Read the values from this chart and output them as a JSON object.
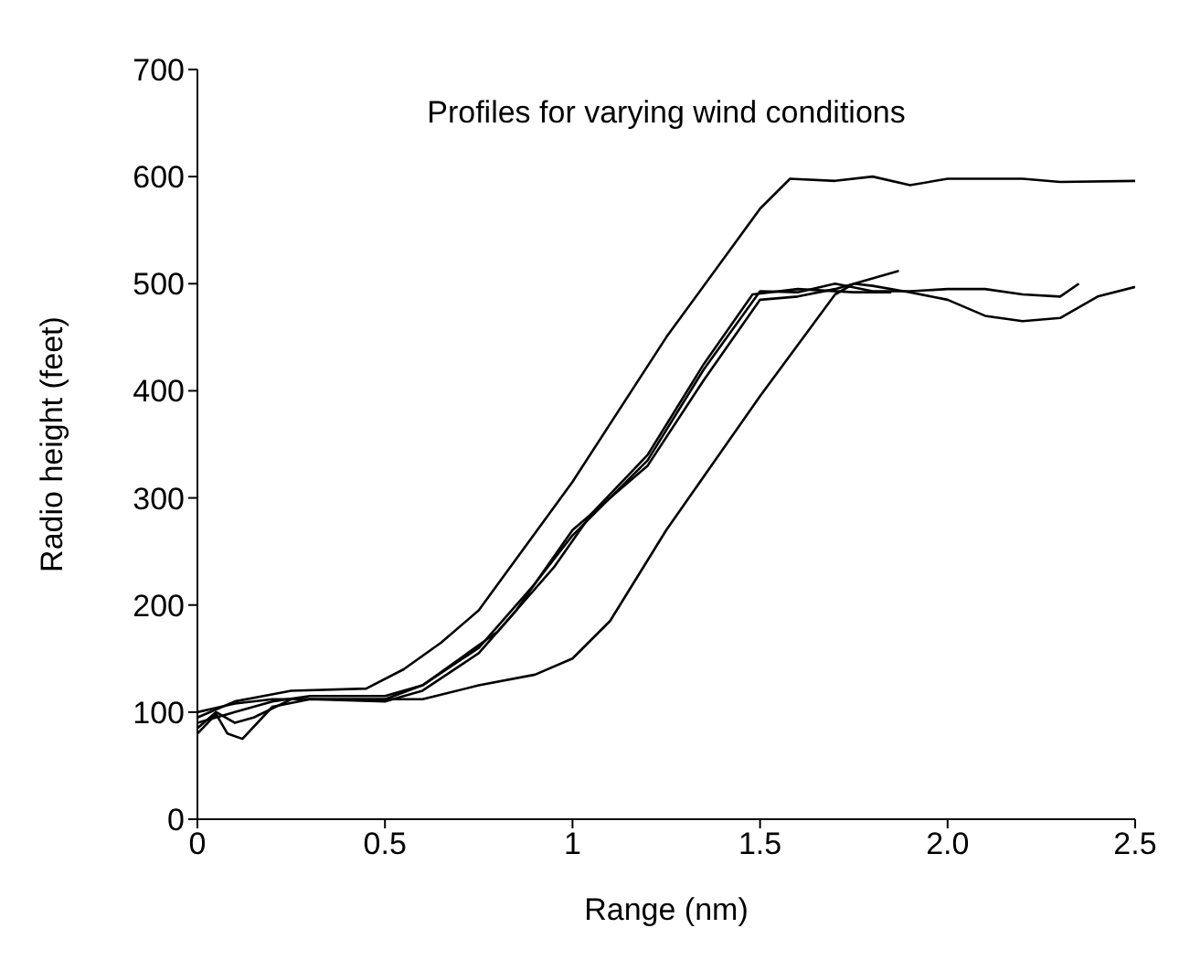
{
  "chart_data": {
    "type": "line",
    "title": "Profiles for varying wind conditions",
    "xlabel": "Range (nm)",
    "ylabel": "Radio height (feet)",
    "xlim": [
      0,
      2.5
    ],
    "ylim": [
      0,
      700
    ],
    "xticks": [
      0,
      0.5,
      1,
      1.5,
      {
        "value": 2,
        "label": "2.0"
      },
      2.5
    ],
    "yticks": [
      0,
      100,
      200,
      300,
      400,
      500,
      600,
      700
    ],
    "series": [
      {
        "color": "#000000",
        "x": [
          0,
          0.1,
          0.25,
          0.45,
          0.55,
          0.65,
          0.75,
          1.0,
          1.25,
          1.5,
          1.58,
          1.7,
          1.8,
          1.9,
          2.0,
          2.2,
          2.3,
          2.5
        ],
        "values": [
          95,
          110,
          120,
          122,
          140,
          165,
          195,
          315,
          450,
          570,
          598,
          596,
          600,
          592,
          598,
          598,
          595,
          596
        ]
      },
      {
        "color": "#000000",
        "x": [
          0,
          0.1,
          0.2,
          0.5,
          0.6,
          0.75,
          0.9,
          1.0,
          1.1,
          1.25,
          1.5,
          1.7,
          1.75,
          1.8,
          1.9,
          2.0,
          2.1,
          2.2,
          2.3,
          2.4,
          2.5
        ],
        "values": [
          100,
          108,
          112,
          112,
          112,
          125,
          135,
          150,
          185,
          270,
          395,
          490,
          500,
          498,
          492,
          485,
          470,
          465,
          468,
          488,
          497
        ]
      },
      {
        "color": "#000000",
        "x": [
          0,
          0.05,
          0.1,
          0.15,
          0.25,
          0.5,
          0.6,
          0.75,
          0.9,
          1.0,
          1.2,
          1.35,
          1.5,
          1.6,
          1.7,
          1.8,
          1.9,
          2.0,
          2.1,
          2.2,
          2.3,
          2.35
        ],
        "values": [
          85,
          100,
          90,
          95,
          112,
          112,
          125,
          160,
          220,
          265,
          335,
          420,
          493,
          492,
          500,
          493,
          493,
          495,
          495,
          490,
          488,
          500
        ]
      },
      {
        "color": "#000000",
        "x": [
          0,
          0.05,
          0.08,
          0.12,
          0.2,
          0.3,
          0.5,
          0.6,
          0.75,
          0.85,
          1.0,
          1.2,
          1.35,
          1.5,
          1.6,
          1.7,
          1.87
        ],
        "values": [
          80,
          98,
          80,
          75,
          105,
          112,
          110,
          120,
          155,
          195,
          270,
          330,
          410,
          485,
          488,
          495,
          512
        ]
      },
      {
        "color": "#000000",
        "x": [
          0,
          0.1,
          0.2,
          0.3,
          0.5,
          0.6,
          0.8,
          0.95,
          1.05,
          1.2,
          1.35,
          1.48,
          1.6,
          1.75,
          1.85
        ],
        "values": [
          90,
          100,
          110,
          115,
          115,
          125,
          175,
          235,
          285,
          340,
          425,
          490,
          495,
          492,
          492
        ]
      }
    ]
  }
}
